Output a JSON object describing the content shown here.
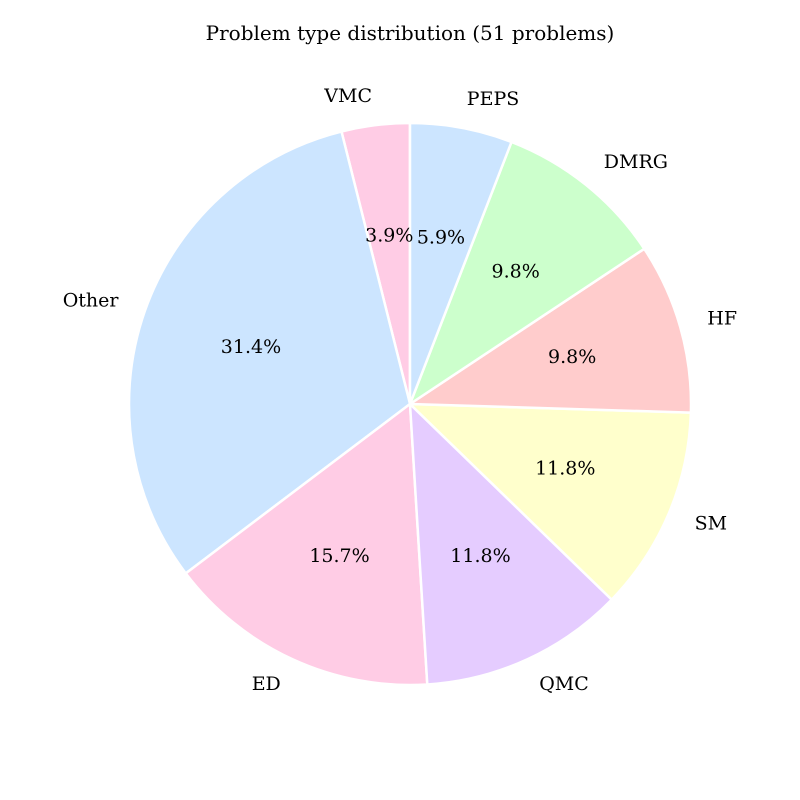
{
  "chart_data": {
    "type": "pie",
    "title": "Problem type distribution (51 problems)",
    "start_angle_deg": 90,
    "direction": "counterclockwise",
    "slices": [
      {
        "label": "VMC",
        "count": 2,
        "percent_label": "3.9%",
        "color": "#ffccE5"
      },
      {
        "label": "Other",
        "count": 16,
        "percent_label": "31.4%",
        "color": "#cce5ff"
      },
      {
        "label": "ED",
        "count": 8,
        "percent_label": "15.7%",
        "color": "#ffcce5"
      },
      {
        "label": "QMC",
        "count": 6,
        "percent_label": "11.8%",
        "color": "#e5ccff"
      },
      {
        "label": "SM",
        "count": 6,
        "percent_label": "11.8%",
        "color": "#ffffcc"
      },
      {
        "label": "HF",
        "count": 5,
        "percent_label": "9.8%",
        "color": "#ffcccc"
      },
      {
        "label": "DMRG",
        "count": 5,
        "percent_label": "9.8%",
        "color": "#ccffcc"
      },
      {
        "label": "PEPS",
        "count": 3,
        "percent_label": "5.9%",
        "color": "#cce5ff"
      }
    ],
    "slice_edge_color": "#ffffff"
  }
}
